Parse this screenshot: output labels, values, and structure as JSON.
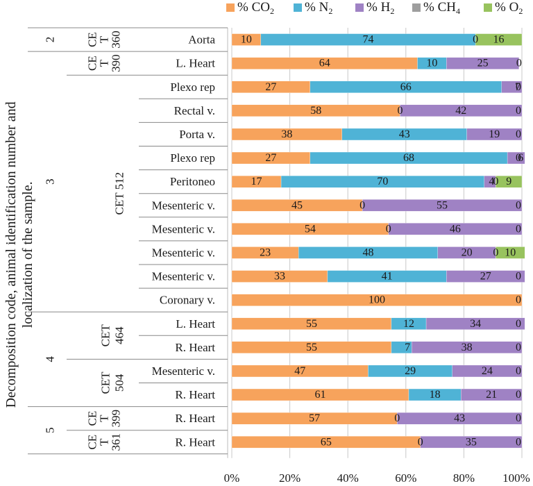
{
  "chart_data": {
    "type": "bar",
    "orientation": "horizontal",
    "stacked": "percent",
    "ylabel": "Decomposition code, animal identification number and localization of the sample.",
    "xlabel": "",
    "xlim": [
      0,
      100
    ],
    "x_ticks": [
      "0%",
      "20%",
      "40%",
      "60%",
      "80%",
      "100%"
    ],
    "legend_position": "top",
    "series": [
      {
        "name": "CO2",
        "label_prefix": "% CO",
        "label_sub": "2",
        "color": "#f7a35c"
      },
      {
        "name": "N2",
        "label_prefix": "% N",
        "label_sub": "2",
        "color": "#4fb3d6"
      },
      {
        "name": "H2",
        "label_prefix": "% H",
        "label_sub": "2",
        "color": "#9f82c4"
      },
      {
        "name": "CH4",
        "label_prefix": "% CH",
        "label_sub": "4",
        "color": "#9e9e9e"
      },
      {
        "name": "O2",
        "label_prefix": "% O",
        "label_sub": "2",
        "color": "#98c35e"
      }
    ],
    "rows": [
      {
        "category": "Aorta",
        "values": [
          10,
          74,
          0,
          null,
          16
        ],
        "labels": [
          "10",
          "74",
          "0",
          "",
          "16"
        ]
      },
      {
        "category": "L. Heart",
        "values": [
          64,
          10,
          25,
          null,
          null
        ],
        "labels": [
          "64",
          "10",
          "25",
          "",
          "0"
        ]
      },
      {
        "category": "Plexo rep",
        "values": [
          27,
          66,
          7,
          null,
          null
        ],
        "labels": [
          "27",
          "66",
          "7",
          "",
          "0"
        ]
      },
      {
        "category": "Rectal v.",
        "values": [
          58,
          0,
          42,
          null,
          null
        ],
        "labels": [
          "58",
          "0",
          "42",
          "",
          "0"
        ]
      },
      {
        "category": "Porta v.",
        "values": [
          38,
          43,
          19,
          null,
          null
        ],
        "labels": [
          "38",
          "43",
          "19",
          "",
          "0"
        ]
      },
      {
        "category": "Plexo rep",
        "values": [
          27,
          68,
          6,
          null,
          null
        ],
        "labels": [
          "27",
          "68",
          "6",
          "",
          "0"
        ]
      },
      {
        "category": "Peritoneo",
        "values": [
          17,
          70,
          4,
          0,
          9
        ],
        "labels": [
          "17",
          "70",
          "4",
          "0",
          "9"
        ]
      },
      {
        "category": "Mesenteric v.",
        "values": [
          45,
          0,
          55,
          null,
          null
        ],
        "labels": [
          "45",
          "0",
          "55",
          "",
          "0"
        ]
      },
      {
        "category": "Mesenteric v.",
        "values": [
          54,
          null,
          46,
          null,
          null
        ],
        "labels": [
          "54",
          "0",
          "46",
          "",
          "0"
        ]
      },
      {
        "category": "Mesenteric v.",
        "values": [
          23,
          48,
          20,
          0,
          10
        ],
        "labels": [
          "23",
          "48",
          "20",
          "0",
          "10"
        ]
      },
      {
        "category": "Mesenteric v.",
        "values": [
          33,
          41,
          27,
          null,
          null
        ],
        "labels": [
          "33",
          "41",
          "27",
          "",
          "0"
        ]
      },
      {
        "category": "Coronary v.",
        "values": [
          100,
          null,
          null,
          null,
          null
        ],
        "labels": [
          "100",
          "",
          "",
          "",
          "0"
        ]
      },
      {
        "category": "L. Heart",
        "values": [
          55,
          12,
          34,
          null,
          null
        ],
        "labels": [
          "55",
          "12",
          "34",
          "",
          "0"
        ]
      },
      {
        "category": "R. Heart",
        "values": [
          55,
          7,
          38,
          null,
          null
        ],
        "labels": [
          "55",
          "7",
          "38",
          "",
          "0"
        ]
      },
      {
        "category": "Mesenteric v.",
        "values": [
          47,
          29,
          24,
          null,
          null
        ],
        "labels": [
          "47",
          "29",
          "24",
          "",
          "0"
        ]
      },
      {
        "category": "R. Heart",
        "values": [
          61,
          18,
          21,
          null,
          null
        ],
        "labels": [
          "61",
          "18",
          "21",
          "",
          "0"
        ]
      },
      {
        "category": "R. Heart",
        "values": [
          57,
          0,
          43,
          null,
          null
        ],
        "labels": [
          "57",
          "0",
          "43",
          "",
          "0"
        ]
      },
      {
        "category": "R. Heart",
        "values": [
          65,
          0,
          35,
          null,
          null
        ],
        "labels": [
          "65",
          "0",
          "35",
          "",
          "0"
        ]
      }
    ],
    "decomposition_groups": [
      {
        "code": "2",
        "rows": [
          0,
          0
        ]
      },
      {
        "code": "3",
        "rows": [
          1,
          11
        ]
      },
      {
        "code": "4",
        "rows": [
          12,
          15
        ]
      },
      {
        "code": "5",
        "rows": [
          16,
          17
        ]
      }
    ],
    "animal_groups": [
      {
        "lines": [
          "CE",
          "T",
          "360"
        ],
        "stacked": false,
        "rows": [
          0,
          0
        ]
      },
      {
        "lines": [
          "CE",
          "T",
          "390"
        ],
        "stacked": false,
        "rows": [
          1,
          1
        ]
      },
      {
        "lines": [
          "CET 512"
        ],
        "stacked": false,
        "rows": [
          2,
          11
        ]
      },
      {
        "lines": [
          "CET",
          "464"
        ],
        "stacked": false,
        "rows": [
          12,
          13
        ]
      },
      {
        "lines": [
          "CET",
          "504"
        ],
        "stacked": false,
        "rows": [
          14,
          15
        ]
      },
      {
        "lines": [
          "CE",
          "T",
          "399"
        ],
        "stacked": false,
        "rows": [
          16,
          16
        ]
      },
      {
        "lines": [
          "CE",
          "T",
          "361"
        ],
        "stacked": false,
        "rows": [
          17,
          17
        ]
      }
    ]
  }
}
